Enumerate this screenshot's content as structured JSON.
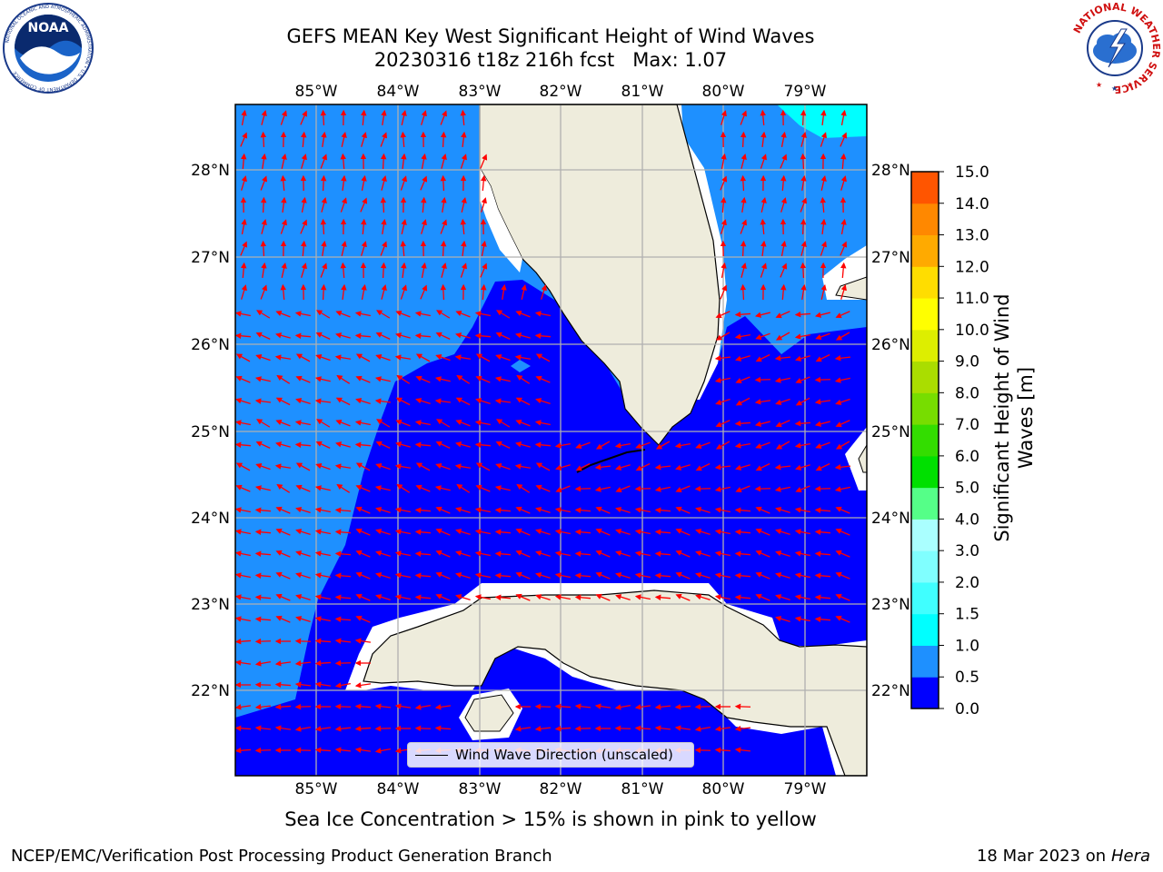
{
  "title": {
    "line1": "GEFS MEAN Key West Significant Height of Wind Waves",
    "line2": "20230316 t18z 216h fcst   Max: 1.07"
  },
  "map": {
    "lon_labels": [
      "85°W",
      "84°W",
      "83°W",
      "82°W",
      "81°W",
      "80°W",
      "79°W"
    ],
    "lat_labels": [
      "28°N",
      "27°N",
      "26°N",
      "25°N",
      "24°N",
      "23°N",
      "22°N"
    ],
    "legend_label": "Wind Wave Direction (unscaled)",
    "colors": {
      "land": "#eeecdc",
      "water_low": "#0000ff",
      "water_mid": "#1e90ff",
      "water_high": "#00ffff",
      "arrow": "#ff0000",
      "grid": "#b0b0b0"
    }
  },
  "colorbar": {
    "label": "Significant Height of Wind Waves [m]",
    "ticks": [
      "0.0",
      "0.5",
      "1.0",
      "1.5",
      "2.0",
      "3.0",
      "4.0",
      "5.0",
      "6.0",
      "7.0",
      "8.0",
      "9.0",
      "10.0",
      "11.0",
      "12.0",
      "13.0",
      "14.0",
      "15.0"
    ],
    "colors": [
      "#0000ff",
      "#1e90ff",
      "#00ffff",
      "#40ffff",
      "#80ffff",
      "#aaffff",
      "#55ff88",
      "#00e000",
      "#33dd00",
      "#77dd00",
      "#aadd00",
      "#ddee00",
      "#ffff00",
      "#ffdd00",
      "#ffaa00",
      "#ff8800",
      "#ff5500",
      "#ff2200",
      "#ff0000"
    ]
  },
  "logos": {
    "noaa_text": "NOAA",
    "noaa_ring": "NATIONAL OCEANIC AND ATMOSPHERIC ADMINISTRATION • U.S. DEPARTMENT OF COMMERCE",
    "nws_ring": "NATIONAL WEATHER SERVICE"
  },
  "notes": {
    "ice": "Sea Ice Concentration > 15% is shown in pink to yellow",
    "footer_left": "NCEP/EMC/Verification Post Processing Product Generation Branch",
    "footer_date": "18 Mar 2023 on",
    "footer_machine": "Hera"
  }
}
